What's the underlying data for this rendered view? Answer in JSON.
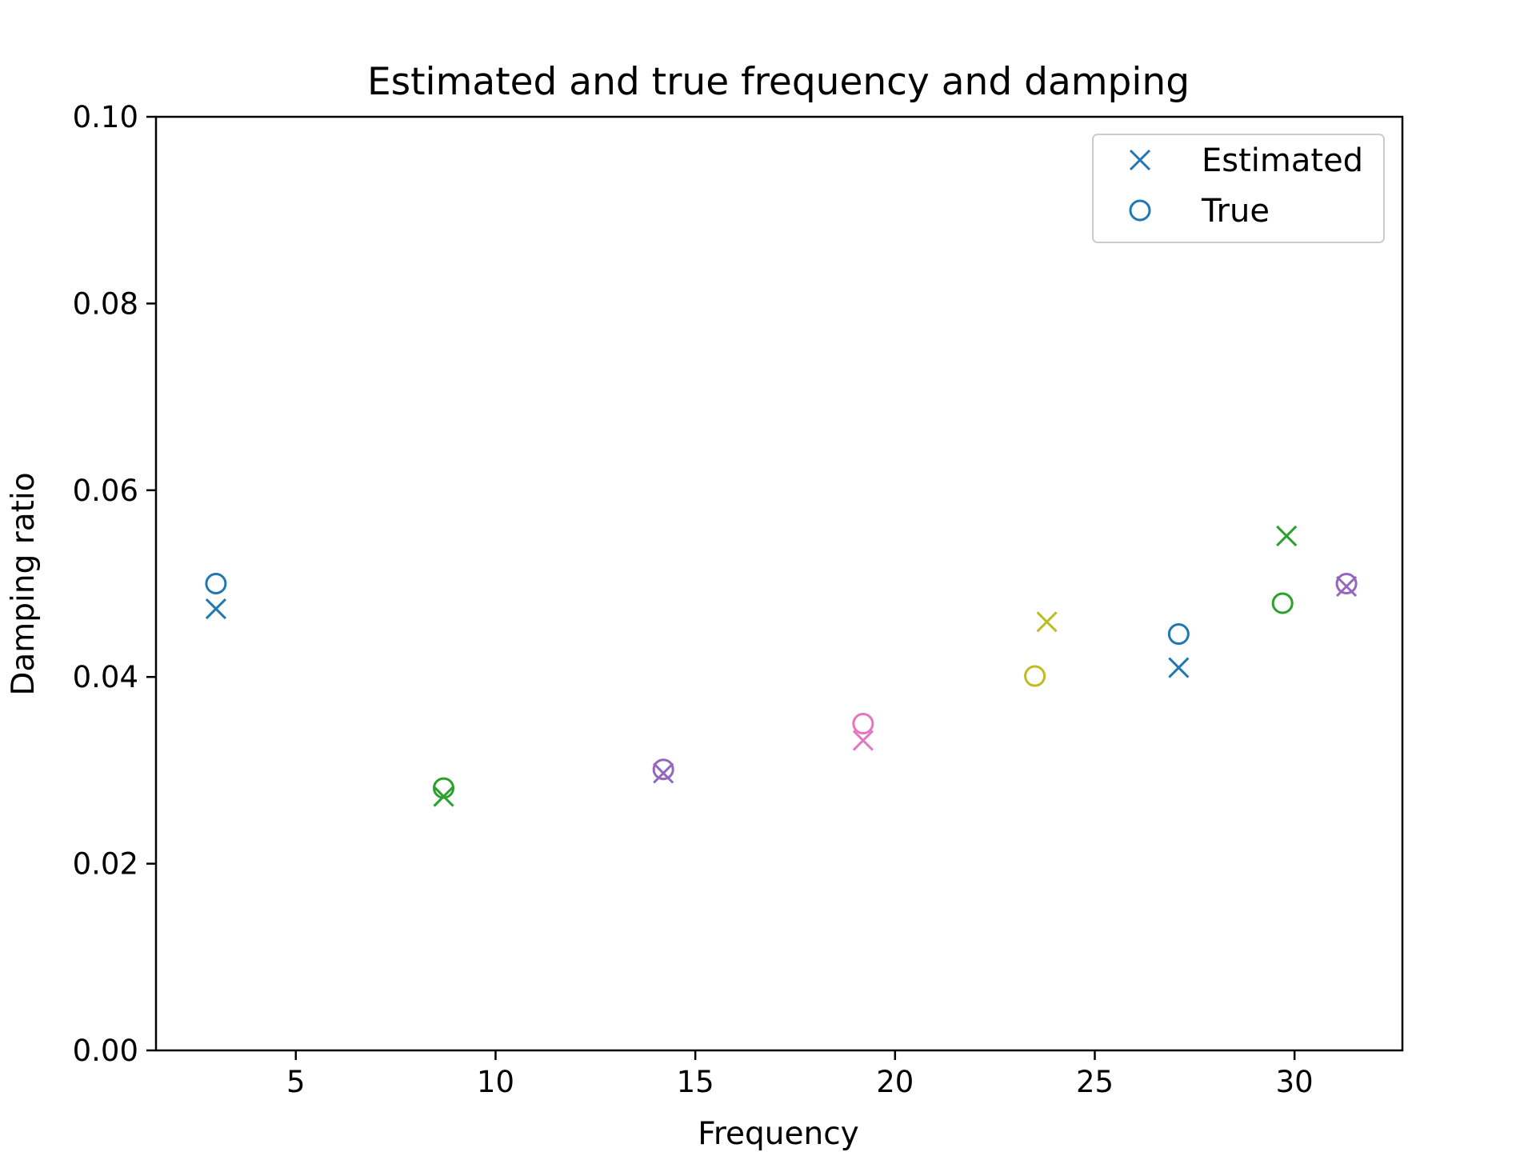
{
  "chart_data": {
    "type": "scatter",
    "title": "Estimated and true frequency and damping",
    "xlabel": "Frequency",
    "ylabel": "Damping ratio",
    "xlim": [
      1.5,
      32.7
    ],
    "ylim": [
      0.0,
      0.1
    ],
    "xticks": [
      "5",
      "10",
      "15",
      "20",
      "25",
      "30"
    ],
    "yticks": [
      "0.00",
      "0.02",
      "0.04",
      "0.06",
      "0.08",
      "0.10"
    ],
    "grid": false,
    "legend_position": "top-right",
    "series": [
      {
        "name": "Estimated",
        "marker": "x",
        "points": [
          {
            "x": 3.0,
            "y": 0.0473,
            "color": "#1f77b4"
          },
          {
            "x": 8.7,
            "y": 0.0272,
            "color": "#2ca02c"
          },
          {
            "x": 14.2,
            "y": 0.0297,
            "color": "#9467bd"
          },
          {
            "x": 19.2,
            "y": 0.0332,
            "color": "#e377c2"
          },
          {
            "x": 23.8,
            "y": 0.0459,
            "color": "#bcbd22"
          },
          {
            "x": 27.1,
            "y": 0.041,
            "color": "#1f77b4"
          },
          {
            "x": 29.8,
            "y": 0.0551,
            "color": "#2ca02c"
          },
          {
            "x": 31.3,
            "y": 0.0497,
            "color": "#9467bd"
          }
        ]
      },
      {
        "name": "True",
        "marker": "o",
        "points": [
          {
            "x": 3.0,
            "y": 0.05,
            "color": "#1f77b4"
          },
          {
            "x": 8.7,
            "y": 0.0281,
            "color": "#2ca02c"
          },
          {
            "x": 14.2,
            "y": 0.0301,
            "color": "#9467bd"
          },
          {
            "x": 19.2,
            "y": 0.035,
            "color": "#e377c2"
          },
          {
            "x": 23.5,
            "y": 0.0401,
            "color": "#bcbd22"
          },
          {
            "x": 27.1,
            "y": 0.0446,
            "color": "#1f77b4"
          },
          {
            "x": 29.7,
            "y": 0.0479,
            "color": "#2ca02c"
          },
          {
            "x": 31.3,
            "y": 0.05,
            "color": "#9467bd"
          }
        ]
      }
    ],
    "legend": {
      "entries": [
        "Estimated",
        "True"
      ],
      "color": "#1f77b4"
    }
  }
}
